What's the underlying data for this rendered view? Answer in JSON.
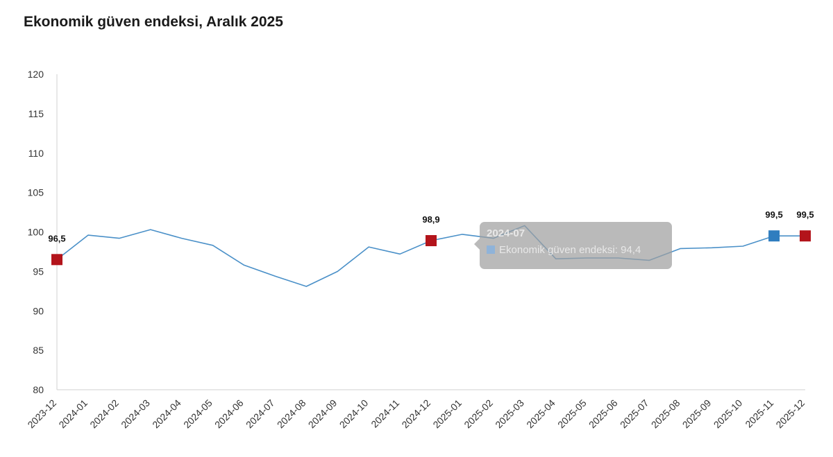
{
  "title": "Ekonomik güven endeksi, Aralık 2025",
  "chart_data": {
    "type": "line",
    "title": "Ekonomik güven endeksi, Aralık 2025",
    "xlabel": "",
    "ylabel": "",
    "ylim": [
      80,
      120
    ],
    "yticks": [
      "80",
      "85",
      "90",
      "95",
      "100",
      "105",
      "110",
      "115",
      "120"
    ],
    "grid": false,
    "categories": [
      "2023-12",
      "2024-01",
      "2024-02",
      "2024-03",
      "2024-04",
      "2024-05",
      "2024-06",
      "2024-07",
      "2024-08",
      "2024-09",
      "2024-10",
      "2024-11",
      "2024-12",
      "2025-01",
      "2025-02",
      "2025-03",
      "2025-04",
      "2025-05",
      "2025-06",
      "2025-07",
      "2025-08",
      "2025-09",
      "2025-10",
      "2025-11",
      "2025-12"
    ],
    "series": [
      {
        "name": "Ekonomik güven endeksi",
        "color": "#4a90c8",
        "values": [
          96.5,
          99.6,
          99.2,
          100.3,
          99.2,
          98.3,
          95.8,
          94.4,
          93.1,
          95.0,
          98.1,
          97.2,
          98.9,
          99.7,
          99.2,
          100.8,
          96.6,
          96.7,
          96.7,
          96.4,
          97.9,
          98.0,
          98.2,
          99.5,
          99.5
        ]
      }
    ],
    "highlighted_points": [
      {
        "category": "2023-12",
        "value": 96.5,
        "label": "96,5",
        "color": "#b3141b"
      },
      {
        "category": "2024-12",
        "value": 98.9,
        "label": "98,9",
        "color": "#b3141b"
      },
      {
        "category": "2025-11",
        "value": 99.5,
        "label": "99,5",
        "color": "#2f7dbf"
      },
      {
        "category": "2025-12",
        "value": 99.5,
        "label": "99,5",
        "color": "#b3141b"
      }
    ],
    "tooltip": {
      "title": "2024-07",
      "text": "Ekonomik güven endeksi: 94,4"
    }
  }
}
